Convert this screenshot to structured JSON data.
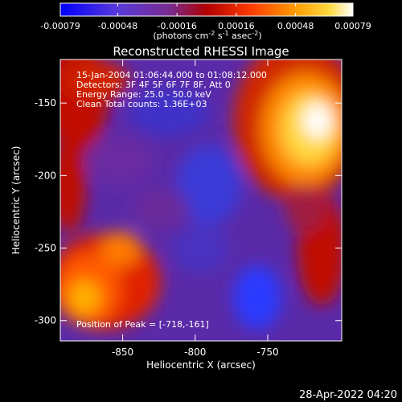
{
  "colorbar": {
    "tick_labels": [
      "-0.00079",
      "-0.00048",
      "-0.00016",
      "0.00016",
      "0.00048",
      "0.00079"
    ],
    "tick_values": [
      -0.00079,
      -0.00048,
      -0.00016,
      0.00016,
      0.00048,
      0.00079
    ],
    "range": [
      -0.00079,
      0.00079
    ],
    "units_prefix": "(photons cm",
    "units_exp1": "-2",
    "units_mid": " s",
    "units_exp2": "-1",
    "units_mid2": " asec",
    "units_exp3": "-2",
    "units_suffix": ")",
    "colors": [
      "#0000ff",
      "#6a3be0",
      "#7a2a9a",
      "#b01010",
      "#ff3a00",
      "#ff9a00",
      "#ffd940",
      "#ffffff"
    ]
  },
  "image": {
    "title": "Reconstructed RHESSI Image",
    "info_lines": [
      "15-Jan-2004 01:06:44.000 to 01:08:12.000",
      "Detectors: 3F 4F 5F 6F 7F 8F, Att 0",
      "Energy Range: 25.0 - 50.0 keV",
      "Clean     Total counts: 1.36E+03"
    ],
    "peak_label": "Position of Peak = [-718,-161]",
    "peak": [
      -718,
      -161
    ],
    "x_axis": {
      "label": "Heliocentric X (arcsec)",
      "range": [
        -893,
        -699
      ],
      "ticks": [
        -850,
        -800,
        -750
      ],
      "tick_labels": [
        "-850",
        "-800",
        "-750"
      ]
    },
    "y_axis": {
      "label": "Heliocentric Y (arcsec)",
      "range": [
        -314,
        -120
      ],
      "ticks": [
        -150,
        -200,
        -250,
        -300
      ],
      "tick_labels": [
        "-150",
        "-200",
        "-250",
        "-300"
      ]
    }
  },
  "footer": {
    "timestamp": "28-Apr-2022 04:20"
  }
}
